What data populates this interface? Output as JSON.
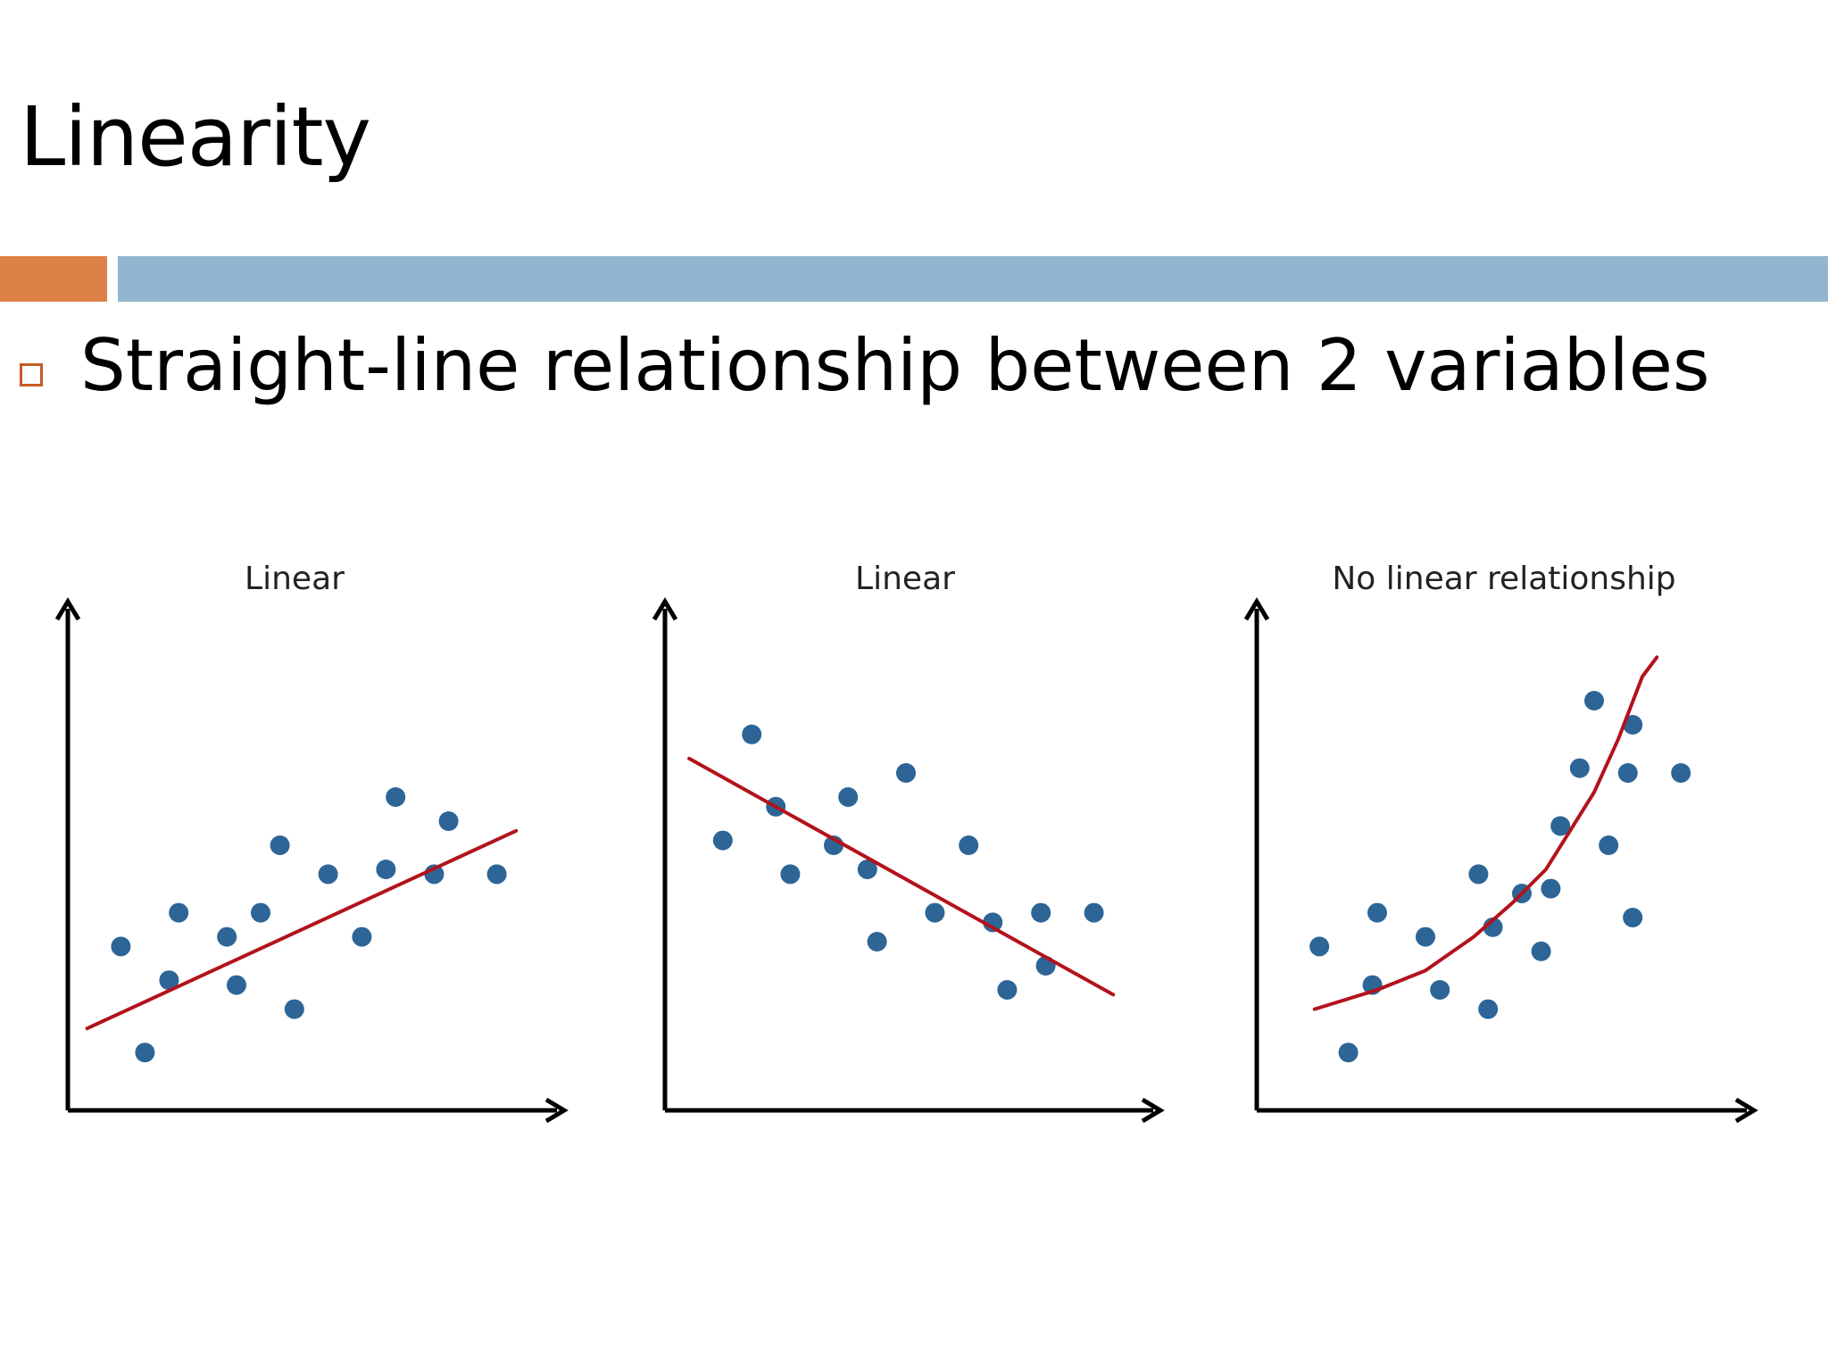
{
  "slide": {
    "title": "Linearity",
    "bullet": "Straight-line relationship between 2 variables"
  },
  "colors": {
    "accent_orange": "#dd8147",
    "accent_blue": "#93b5cf",
    "point_color": "#2d6596",
    "line_color": "#b3121b",
    "axis_color": "#000000"
  },
  "chart_data": [
    {
      "type": "scatter",
      "title": "Linear",
      "xlabel": "",
      "ylabel": "",
      "grid": false,
      "xlim": [
        0,
        10
      ],
      "ylim": [
        0,
        10
      ],
      "points": [
        [
          1.1,
          3.4
        ],
        [
          1.6,
          1.2
        ],
        [
          2.1,
          2.7
        ],
        [
          2.3,
          4.1
        ],
        [
          3.3,
          3.6
        ],
        [
          3.5,
          2.6
        ],
        [
          4.0,
          4.1
        ],
        [
          4.4,
          5.5
        ],
        [
          4.7,
          2.1
        ],
        [
          5.4,
          4.9
        ],
        [
          6.1,
          3.6
        ],
        [
          6.6,
          5.0
        ],
        [
          6.8,
          6.5
        ],
        [
          7.6,
          4.9
        ],
        [
          7.9,
          6.0
        ],
        [
          8.9,
          4.9
        ]
      ],
      "trend": {
        "kind": "line",
        "x": [
          0.4,
          9.3
        ],
        "y": [
          1.7,
          5.8
        ]
      }
    },
    {
      "type": "scatter",
      "title": "Linear",
      "xlabel": "",
      "ylabel": "",
      "grid": false,
      "xlim": [
        0,
        10
      ],
      "ylim": [
        0,
        10
      ],
      "points": [
        [
          1.2,
          5.6
        ],
        [
          1.8,
          7.8
        ],
        [
          2.3,
          6.3
        ],
        [
          2.6,
          4.9
        ],
        [
          3.5,
          5.5
        ],
        [
          3.8,
          6.5
        ],
        [
          4.2,
          5.0
        ],
        [
          4.4,
          3.5
        ],
        [
          5.0,
          7.0
        ],
        [
          5.6,
          4.1
        ],
        [
          6.3,
          5.5
        ],
        [
          6.8,
          3.9
        ],
        [
          7.1,
          2.5
        ],
        [
          7.8,
          4.1
        ],
        [
          7.9,
          3.0
        ],
        [
          8.9,
          4.1
        ]
      ],
      "trend": {
        "kind": "line",
        "x": [
          0.5,
          9.3
        ],
        "y": [
          7.3,
          2.4
        ]
      }
    },
    {
      "type": "scatter",
      "title": "No linear relationship",
      "xlabel": "",
      "ylabel": "",
      "grid": false,
      "xlim": [
        0,
        10
      ],
      "ylim": [
        0,
        10
      ],
      "points": [
        [
          1.3,
          3.4
        ],
        [
          1.9,
          1.2
        ],
        [
          2.5,
          4.1
        ],
        [
          2.4,
          2.6
        ],
        [
          3.5,
          3.6
        ],
        [
          3.8,
          2.5
        ],
        [
          4.6,
          4.9
        ],
        [
          4.8,
          2.1
        ],
        [
          4.9,
          3.8
        ],
        [
          5.5,
          4.5
        ],
        [
          5.9,
          3.3
        ],
        [
          6.1,
          4.6
        ],
        [
          6.3,
          5.9
        ],
        [
          6.7,
          7.1
        ],
        [
          7.0,
          8.5
        ],
        [
          7.3,
          5.5
        ],
        [
          7.7,
          7.0
        ],
        [
          7.8,
          8.0
        ],
        [
          7.8,
          4.0
        ],
        [
          8.8,
          7.0
        ]
      ],
      "trend": {
        "kind": "curve",
        "x": [
          1.2,
          2.5,
          3.5,
          4.5,
          5.3,
          6.0,
          6.5,
          7.0,
          7.5,
          8.0,
          8.3
        ],
        "y": [
          2.1,
          2.5,
          2.9,
          3.6,
          4.3,
          5.0,
          5.8,
          6.6,
          7.7,
          9.0,
          9.4
        ]
      }
    }
  ]
}
